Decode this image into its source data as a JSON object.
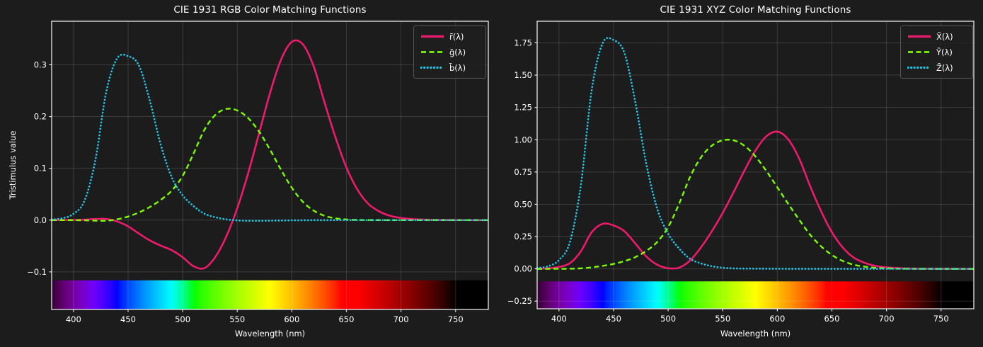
{
  "figure": {
    "background": "#1c1c1c",
    "grid_color": "#3c3c3c",
    "spine_color": "#e8e8e8",
    "text_color": "#ffffff"
  },
  "chart_data": [
    {
      "id": "rgb",
      "type": "line",
      "title": "CIE 1931 RGB Color Matching Functions",
      "xlabel": "Wavelength (nm)",
      "ylabel": "Tristimulus value",
      "xlim": [
        380,
        780
      ],
      "ylim": [
        -0.1726,
        0.384
      ],
      "xticks": [
        400,
        450,
        500,
        550,
        600,
        650,
        700,
        750
      ],
      "xtick_labels": [
        "400",
        "450",
        "500",
        "550",
        "600",
        "650",
        "700",
        "750"
      ],
      "yticks": [
        -0.1,
        0.0,
        0.1,
        0.2,
        0.3
      ],
      "ytick_labels": [
        "−0.1",
        "0.0",
        "0.1",
        "0.2",
        "0.3"
      ],
      "grid": true,
      "legend_position": "upper right",
      "spectrum_band": {
        "x_range": [
          380,
          780
        ],
        "y_top": -0.1164,
        "y_bottom": -0.1726
      },
      "wavelengths": [
        380,
        390,
        400,
        410,
        420,
        430,
        440,
        450,
        460,
        470,
        480,
        490,
        500,
        510,
        520,
        530,
        540,
        550,
        560,
        570,
        580,
        590,
        600,
        610,
        620,
        630,
        640,
        650,
        660,
        670,
        680,
        690,
        700,
        710,
        720,
        730,
        740,
        750,
        760,
        770,
        780
      ],
      "series": [
        {
          "key": "rbar",
          "name": "r̄(λ)",
          "color": "#ed1a6d",
          "line_style": "solid",
          "values": [
            3e-05,
            0.0001,
            0.0003,
            0.00084,
            0.00211,
            0.00218,
            -0.00261,
            -0.01213,
            -0.02608,
            -0.03933,
            -0.04939,
            -0.05814,
            -0.07173,
            -0.08901,
            -0.09264,
            -0.07101,
            -0.03152,
            0.02279,
            0.0906,
            0.16768,
            0.24526,
            0.30928,
            0.34429,
            0.33971,
            0.29708,
            0.22677,
            0.15968,
            0.10167,
            0.05932,
            0.03149,
            0.01687,
            0.00819,
            0.0041,
            0.0021,
            0.00105,
            0.00052,
            0.00025,
            0.00012,
            6e-05,
            3e-05,
            1e-05
          ]
        },
        {
          "key": "gbar",
          "name": "ḡ(λ)",
          "color": "#7cfc00",
          "line_style": "dashed",
          "values": [
            -1e-05,
            -4e-05,
            -0.00014,
            -0.00041,
            -0.0011,
            -0.00119,
            0.00149,
            0.00678,
            0.01485,
            0.02538,
            0.03914,
            0.05689,
            0.08536,
            0.1286,
            0.17468,
            0.20317,
            0.21466,
            0.21178,
            0.19702,
            0.17087,
            0.1361,
            0.09754,
            0.06246,
            0.03557,
            0.01828,
            0.00833,
            0.00334,
            0.00116,
            0.00037,
            0.00011,
            3e-05,
            0,
            0,
            0,
            0,
            0,
            0,
            0,
            0,
            0,
            0
          ]
        },
        {
          "key": "bbar",
          "name": "b̄(λ)",
          "color": "#22c5e6",
          "line_style": "dotted",
          "values": [
            0.00117,
            0.00359,
            0.01214,
            0.03707,
            0.11541,
            0.24769,
            0.31228,
            0.3167,
            0.29821,
            0.22991,
            0.14494,
            0.08257,
            0.04776,
            0.02698,
            0.01221,
            0.00549,
            0.00146,
            -0.00058,
            -0.0013,
            -0.00135,
            -0.00108,
            -0.00079,
            -0.00049,
            -0.0003,
            -0.00015,
            -8e-05,
            -3e-05,
            -1e-05,
            0,
            0,
            0,
            0,
            0,
            0,
            0,
            0,
            0,
            0,
            0,
            0,
            0
          ]
        }
      ]
    },
    {
      "id": "xyz",
      "type": "line",
      "title": "CIE 1931 XYZ Color Matching Functions",
      "xlabel": "Wavelength (nm)",
      "ylabel": "",
      "xlim": [
        380,
        780
      ],
      "ylim": [
        -0.309,
        1.917
      ],
      "xticks": [
        400,
        450,
        500,
        550,
        600,
        650,
        700,
        750
      ],
      "xtick_labels": [
        "400",
        "450",
        "500",
        "550",
        "600",
        "650",
        "700",
        "750"
      ],
      "yticks": [
        -0.25,
        0.0,
        0.25,
        0.5,
        0.75,
        1.0,
        1.25,
        1.5,
        1.75
      ],
      "ytick_labels": [
        "−0.25",
        "0.00",
        "0.25",
        "0.50",
        "0.75",
        "1.00",
        "1.25",
        "1.50",
        "1.75"
      ],
      "grid": true,
      "legend_position": "upper right",
      "spectrum_band": {
        "x_range": [
          380,
          780
        ],
        "y_top": -0.097,
        "y_bottom": -0.309
      },
      "wavelengths": [
        380,
        390,
        400,
        410,
        420,
        430,
        440,
        450,
        460,
        470,
        480,
        490,
        500,
        510,
        520,
        530,
        540,
        550,
        560,
        570,
        580,
        590,
        600,
        610,
        620,
        630,
        640,
        650,
        660,
        670,
        680,
        690,
        700,
        710,
        720,
        730,
        740,
        750,
        760,
        770,
        780
      ],
      "series": [
        {
          "key": "xbar",
          "name": "X̄(λ)",
          "color": "#ed1a6d",
          "line_style": "solid",
          "values": [
            0.0014,
            0.0042,
            0.0143,
            0.0435,
            0.1344,
            0.2839,
            0.3483,
            0.3362,
            0.2908,
            0.1954,
            0.0956,
            0.032,
            0.0049,
            0.0093,
            0.0633,
            0.1655,
            0.2904,
            0.4334,
            0.5945,
            0.7621,
            0.9163,
            1.0263,
            1.0622,
            1.0026,
            0.8544,
            0.6424,
            0.4479,
            0.2835,
            0.1649,
            0.0874,
            0.0468,
            0.0227,
            0.0114,
            0.0058,
            0.0029,
            0.0014,
            0.0007,
            0.0003,
            0.0002,
            0.0001,
            0
          ]
        },
        {
          "key": "ybar",
          "name": "Ȳ(λ)",
          "color": "#7cfc00",
          "line_style": "dashed",
          "values": [
            0,
            0.0001,
            0.0004,
            0.0012,
            0.004,
            0.0116,
            0.023,
            0.038,
            0.06,
            0.091,
            0.139,
            0.208,
            0.323,
            0.503,
            0.71,
            0.862,
            0.954,
            0.995,
            0.995,
            0.952,
            0.87,
            0.757,
            0.631,
            0.503,
            0.381,
            0.265,
            0.175,
            0.107,
            0.061,
            0.032,
            0.017,
            0.0082,
            0.0041,
            0.0021,
            0.001,
            0.0005,
            0.0002,
            0.0001,
            0.0001,
            0,
            0
          ]
        },
        {
          "key": "zbar",
          "name": "Z̄(λ)",
          "color": "#22c5e6",
          "line_style": "dotted",
          "values": [
            0.0065,
            0.0201,
            0.0679,
            0.2074,
            0.6456,
            1.3856,
            1.7471,
            1.7721,
            1.6692,
            1.2876,
            0.813,
            0.4652,
            0.272,
            0.1582,
            0.0782,
            0.0422,
            0.0203,
            0.0087,
            0.0039,
            0.0021,
            0.0017,
            0.0011,
            0.0008,
            0.0003,
            0.0002,
            0,
            0,
            0,
            0,
            0,
            0,
            0,
            0,
            0,
            0,
            0,
            0,
            0,
            0,
            0,
            0
          ]
        }
      ]
    }
  ]
}
